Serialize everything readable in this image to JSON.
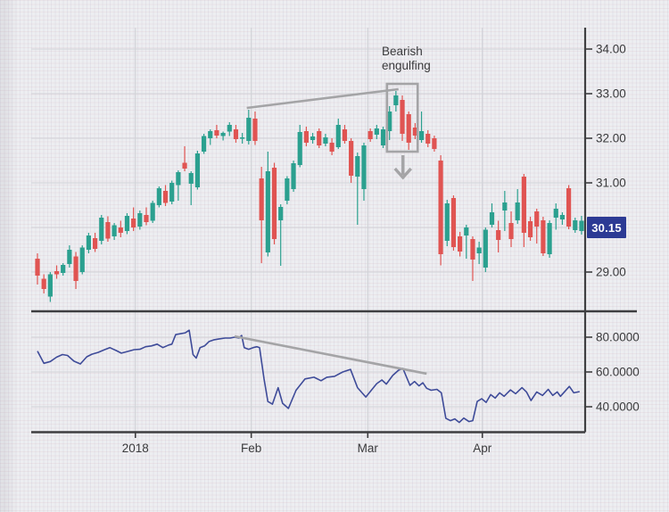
{
  "annotation": {
    "line1": "Bearish",
    "line2": "engulfing"
  },
  "last_price_badge": {
    "text": "30.15"
  },
  "colors": {
    "background": "#edeef1",
    "grid_major": "#d2d3d8",
    "axis": "#3e3e41",
    "candle_up": "#2ba08f",
    "candle_down": "#e05452",
    "indicator_line": "#3e4b99",
    "annotation_gray": "#a4a4a6",
    "badge_bg": "#2c3a94",
    "badge_text": "#ffffff",
    "label_text": "#3a3a3c"
  },
  "chart_data": {
    "type": "candlestick",
    "title": "",
    "subtitle": "",
    "legend": [],
    "price_axis": {
      "side": "right",
      "grid_values": [
        34,
        33,
        32,
        31,
        30,
        29
      ],
      "tick_labels": [
        {
          "value": 34,
          "label": "34.00"
        },
        {
          "value": 33,
          "label": "33.00"
        },
        {
          "value": 32,
          "label": "32.00"
        },
        {
          "value": 31,
          "label": "31.00"
        },
        {
          "value": 29,
          "label": "29.00"
        }
      ],
      "last_price": 30.15
    },
    "indicator_axis": {
      "grid_values": [
        80,
        60,
        40
      ],
      "tick_labels": [
        {
          "value": 80,
          "label": "80.0000"
        },
        {
          "value": 60,
          "label": "60.0000"
        },
        {
          "value": 40,
          "label": "40.0000"
        }
      ]
    },
    "time_axis": {
      "labels": [
        {
          "label": "2018",
          "i": 15.3
        },
        {
          "label": "Feb",
          "i": 33.4
        },
        {
          "label": "Mar",
          "i": 51.6
        },
        {
          "label": "Apr",
          "i": 69.5
        }
      ]
    },
    "candles": [
      [
        29.3,
        29.42,
        28.72,
        28.92
      ],
      [
        28.85,
        28.95,
        28.52,
        28.62
      ],
      [
        28.45,
        29.0,
        28.33,
        28.95
      ],
      [
        29.02,
        29.15,
        28.85,
        28.95
      ],
      [
        28.98,
        29.2,
        28.92,
        29.16
      ],
      [
        29.18,
        29.6,
        29.1,
        29.5
      ],
      [
        29.35,
        29.45,
        28.62,
        28.8
      ],
      [
        29.0,
        29.6,
        28.95,
        29.55
      ],
      [
        29.5,
        29.88,
        29.42,
        29.82
      ],
      [
        29.76,
        29.88,
        29.45,
        29.52
      ],
      [
        29.7,
        30.28,
        29.62,
        30.22
      ],
      [
        30.12,
        30.25,
        29.68,
        29.75
      ],
      [
        29.8,
        30.1,
        29.72,
        30.05
      ],
      [
        30.0,
        30.15,
        29.78,
        29.88
      ],
      [
        29.92,
        30.32,
        29.85,
        30.26
      ],
      [
        30.2,
        30.45,
        29.92,
        30.0
      ],
      [
        30.02,
        30.38,
        29.95,
        30.32
      ],
      [
        30.28,
        30.45,
        30.05,
        30.12
      ],
      [
        30.15,
        30.6,
        30.1,
        30.55
      ],
      [
        30.5,
        30.92,
        30.45,
        30.88
      ],
      [
        30.82,
        30.95,
        30.48,
        30.55
      ],
      [
        30.58,
        31.05,
        30.52,
        31.0
      ],
      [
        30.95,
        31.28,
        30.6,
        31.24
      ],
      [
        31.45,
        31.82,
        31.26,
        31.32
      ],
      [
        30.98,
        31.26,
        30.5,
        31.22
      ],
      [
        30.9,
        31.72,
        30.85,
        31.66
      ],
      [
        31.7,
        32.1,
        31.65,
        32.05
      ],
      [
        32.0,
        32.2,
        31.85,
        32.16
      ],
      [
        32.18,
        32.3,
        32.0,
        32.06
      ],
      [
        32.05,
        32.15,
        31.95,
        32.12
      ],
      [
        32.15,
        32.36,
        32.05,
        32.3
      ],
      [
        32.2,
        32.3,
        31.9,
        31.98
      ],
      [
        32.0,
        32.12,
        31.88,
        32.02
      ],
      [
        31.94,
        32.64,
        31.86,
        32.46
      ],
      [
        32.44,
        32.6,
        31.85,
        31.94
      ],
      [
        31.1,
        31.36,
        29.2,
        30.16
      ],
      [
        29.44,
        31.7,
        29.35,
        31.26
      ],
      [
        31.34,
        31.45,
        29.62,
        29.74
      ],
      [
        30.16,
        30.52,
        29.14,
        30.46
      ],
      [
        30.6,
        31.15,
        30.52,
        31.1
      ],
      [
        30.86,
        31.5,
        30.8,
        31.44
      ],
      [
        31.4,
        32.3,
        31.35,
        32.14
      ],
      [
        32.16,
        32.26,
        31.82,
        31.9
      ],
      [
        31.96,
        32.12,
        31.88,
        32.04
      ],
      [
        32.16,
        32.22,
        31.78,
        31.84
      ],
      [
        31.88,
        32.1,
        31.82,
        32.02
      ],
      [
        31.9,
        32.0,
        31.62,
        31.7
      ],
      [
        31.8,
        32.44,
        31.76,
        32.3
      ],
      [
        32.2,
        32.3,
        31.88,
        31.94
      ],
      [
        31.94,
        32.0,
        31.0,
        31.16
      ],
      [
        31.14,
        31.68,
        30.06,
        31.6
      ],
      [
        30.86,
        31.9,
        30.6,
        31.84
      ],
      [
        32.16,
        32.22,
        31.92,
        31.98
      ],
      [
        32.08,
        32.3,
        31.98,
        32.22
      ],
      [
        31.84,
        32.26,
        31.78,
        32.2
      ],
      [
        32.16,
        32.72,
        31.96,
        32.6
      ],
      [
        32.74,
        33.06,
        32.6,
        32.96
      ],
      [
        32.86,
        32.96,
        31.94,
        32.1
      ],
      [
        32.54,
        32.6,
        31.74,
        31.9
      ],
      [
        32.24,
        32.34,
        31.98,
        32.06
      ],
      [
        31.96,
        32.6,
        31.9,
        32.16
      ],
      [
        32.1,
        32.18,
        31.8,
        31.88
      ],
      [
        32.0,
        32.06,
        31.7,
        31.76
      ],
      [
        31.5,
        31.62,
        29.15,
        29.4
      ],
      [
        29.7,
        30.62,
        29.58,
        30.54
      ],
      [
        30.66,
        30.72,
        29.48,
        29.56
      ],
      [
        29.8,
        29.9,
        29.35,
        29.46
      ],
      [
        29.82,
        30.06,
        29.3,
        30.0
      ],
      [
        29.74,
        29.8,
        28.8,
        29.28
      ],
      [
        29.42,
        29.68,
        29.18,
        29.55
      ],
      [
        29.1,
        30.0,
        29.0,
        29.95
      ],
      [
        30.06,
        30.54,
        30.0,
        30.34
      ],
      [
        29.94,
        30.15,
        29.44,
        29.72
      ],
      [
        30.38,
        30.82,
        29.92,
        30.56
      ],
      [
        30.1,
        30.36,
        29.56,
        29.74
      ],
      [
        30.16,
        30.86,
        30.08,
        30.56
      ],
      [
        31.14,
        31.2,
        29.56,
        29.88
      ],
      [
        30.14,
        30.24,
        29.7,
        29.78
      ],
      [
        30.36,
        30.42,
        29.64,
        30.02
      ],
      [
        30.16,
        30.24,
        29.36,
        29.42
      ],
      [
        29.4,
        30.16,
        29.32,
        30.1
      ],
      [
        30.22,
        30.54,
        29.95,
        30.42
      ],
      [
        30.18,
        30.34,
        30.06,
        30.28
      ],
      [
        30.88,
        30.95,
        29.96,
        30.02
      ],
      [
        29.94,
        30.22,
        29.88,
        30.16
      ],
      [
        29.92,
        30.26,
        29.84,
        30.15
      ]
    ],
    "indicator": {
      "name": "oscillator",
      "points": [
        [
          0,
          72
        ],
        [
          1,
          65
        ],
        [
          2,
          66
        ],
        [
          3,
          68.5
        ],
        [
          3.9,
          70
        ],
        [
          4.7,
          69.5
        ],
        [
          5.7,
          66.2
        ],
        [
          6.7,
          64.6
        ],
        [
          7.7,
          68.7
        ],
        [
          8.5,
          70.2
        ],
        [
          9.5,
          71.3
        ],
        [
          10.5,
          72.8
        ],
        [
          11.3,
          74
        ],
        [
          12.3,
          72.3
        ],
        [
          13.1,
          70.8
        ],
        [
          14.1,
          71.8
        ],
        [
          15.1,
          72.8
        ],
        [
          16,
          73
        ],
        [
          16.9,
          74.5
        ],
        [
          17.8,
          75
        ],
        [
          18.7,
          76
        ],
        [
          19.6,
          74
        ],
        [
          20.5,
          75.5
        ],
        [
          21,
          76
        ],
        [
          21.6,
          81.5
        ],
        [
          22.4,
          82
        ],
        [
          23.1,
          82.5
        ],
        [
          23.7,
          84
        ],
        [
          24.3,
          70
        ],
        [
          24.8,
          68
        ],
        [
          25.4,
          74
        ],
        [
          26.1,
          75
        ],
        [
          26.8,
          77.5
        ],
        [
          27.6,
          78.5
        ],
        [
          28.4,
          79
        ],
        [
          29.3,
          79.5
        ],
        [
          30.1,
          79.5
        ],
        [
          30.8,
          80
        ],
        [
          31.5,
          79.5
        ],
        [
          31.9,
          81
        ],
        [
          32.3,
          74
        ],
        [
          33,
          73
        ],
        [
          33.7,
          74
        ],
        [
          34.3,
          74.5
        ],
        [
          34.7,
          74
        ],
        [
          35.4,
          56
        ],
        [
          36,
          43
        ],
        [
          36.7,
          41.5
        ],
        [
          37.6,
          51
        ],
        [
          38.3,
          42
        ],
        [
          39.2,
          39
        ],
        [
          40.4,
          49.5
        ],
        [
          41.8,
          56
        ],
        [
          43.2,
          57
        ],
        [
          44.3,
          55
        ],
        [
          45.2,
          57
        ],
        [
          46.4,
          57.5
        ],
        [
          47.7,
          60
        ],
        [
          48.9,
          61.5
        ],
        [
          50,
          51
        ],
        [
          51.3,
          45.6
        ],
        [
          53,
          53.3
        ],
        [
          53.8,
          55.4
        ],
        [
          54.5,
          53
        ],
        [
          55.5,
          58
        ],
        [
          56.4,
          61
        ],
        [
          57.1,
          62
        ],
        [
          58.2,
          52.3
        ],
        [
          58.9,
          54.5
        ],
        [
          59.6,
          52
        ],
        [
          60.2,
          53.8
        ],
        [
          60.8,
          50.6
        ],
        [
          61.5,
          49.5
        ],
        [
          62.4,
          50
        ],
        [
          63.1,
          48
        ],
        [
          63.8,
          33.4
        ],
        [
          64.5,
          32
        ],
        [
          65.2,
          33
        ],
        [
          65.9,
          31
        ],
        [
          66.6,
          33.5
        ],
        [
          67.4,
          31.5
        ],
        [
          68,
          32
        ],
        [
          68.7,
          43
        ],
        [
          69.4,
          44.6
        ],
        [
          70.1,
          42.5
        ],
        [
          70.8,
          47
        ],
        [
          71.5,
          45
        ],
        [
          72.2,
          48
        ],
        [
          72.9,
          46
        ],
        [
          73.9,
          49.7
        ],
        [
          74.7,
          47.5
        ],
        [
          75.7,
          51
        ],
        [
          76.4,
          48.5
        ],
        [
          77.1,
          43.6
        ],
        [
          78,
          48.5
        ],
        [
          78.9,
          46.5
        ],
        [
          79.8,
          50
        ],
        [
          80.5,
          46.5
        ],
        [
          81.2,
          48.5
        ],
        [
          81.7,
          46
        ],
        [
          83.1,
          51.7
        ],
        [
          83.8,
          48
        ],
        [
          84.7,
          48.7
        ]
      ]
    },
    "annotations": {
      "trendline_price": {
        "i1": 32.7,
        "p1": 32.68,
        "i2": 56.4,
        "p2": 33.1
      },
      "trendline_indicator": {
        "i1": 30.8,
        "v1": 80.5,
        "i2": 60.8,
        "v2": 59.0
      },
      "engulfing_box": {
        "i1": 54.6,
        "i2": 59.4,
        "p_top": 33.22,
        "p_bottom": 31.7
      },
      "down_arrow": {
        "i": 57.1,
        "p_top": 31.62,
        "p_bottom": 31.12
      }
    }
  }
}
